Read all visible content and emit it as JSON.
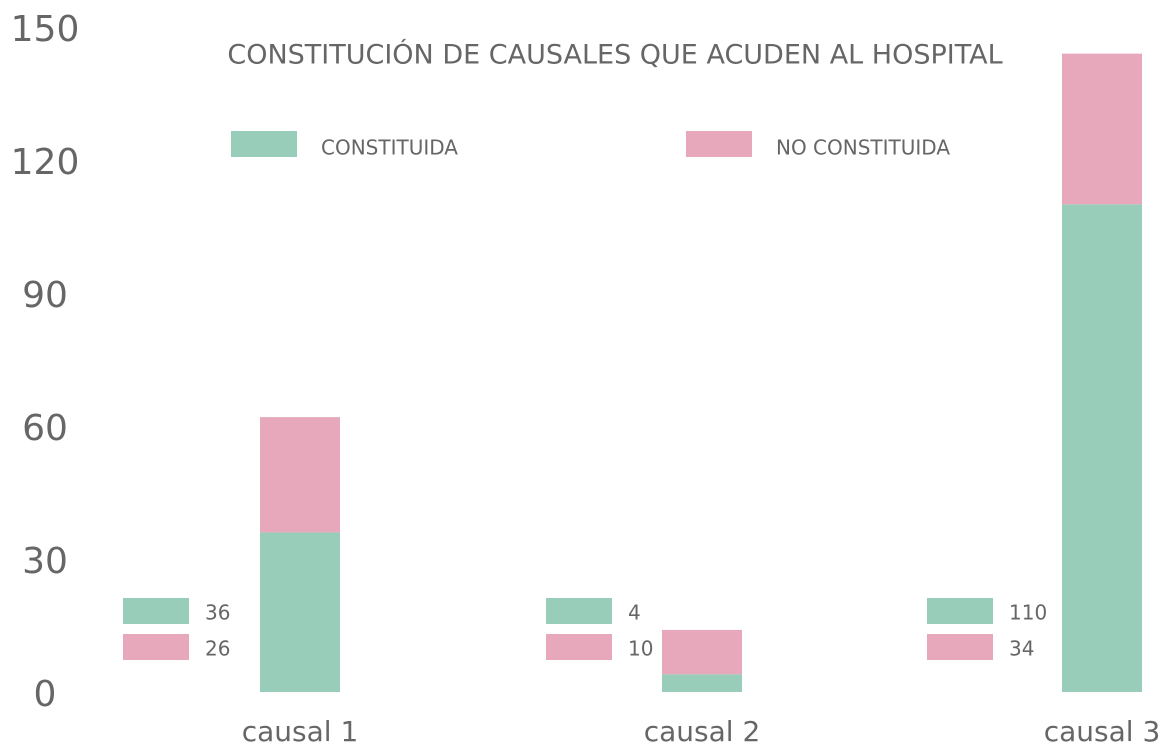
{
  "chart_data": {
    "type": "bar",
    "stacked": true,
    "title": "CONSTITUCIÓN DE CAUSALES QUE ACUDEN AL HOSPITAL",
    "categories": [
      "causal 1",
      "causal 2",
      "causal 3"
    ],
    "series": [
      {
        "name": "CONSTITUIDA",
        "color": "#97cdb9",
        "values": [
          36,
          4,
          110
        ]
      },
      {
        "name": "NO CONSTITUIDA",
        "color": "#e8a8bb",
        "values": [
          26,
          10,
          34
        ]
      }
    ],
    "ylim": [
      0,
      150
    ],
    "yticks": [
      0,
      30,
      60,
      90,
      120,
      150
    ]
  }
}
